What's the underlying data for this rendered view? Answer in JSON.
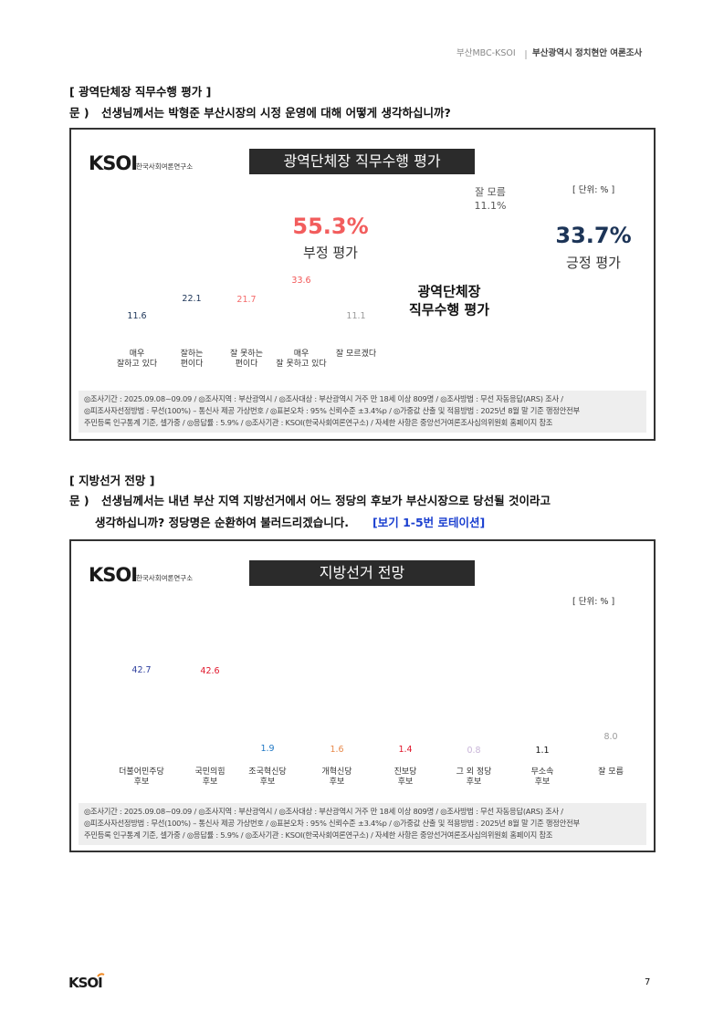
{
  "header": {
    "source": "부산MBC-KSOI",
    "title": "부산광역시 정치현안 여론조사"
  },
  "sections": [
    {
      "heading": "[ 광역단체장 직무수행 평가 ]",
      "question_label": "문 )",
      "question": [
        "선생님께서는 박형준 부산시장의 시정 운영에 대해 어떻게 생각하십니까?"
      ]
    },
    {
      "heading": "[ 지방선거 전망 ]",
      "question_label": "문 )",
      "question": [
        "선생님께서는 내년 부산 지역 지방선거에서 어느 정당의 후보가 부산시장으로 당선될 것이라고",
        "생각하십니까? 정당명은 순환하여 불러드리겠습니다."
      ],
      "question_note": "[보기 1-5번 로테이션]"
    }
  ],
  "panels": [
    {
      "logo": "KSOI",
      "logo_sub": "한국사회여론연구소",
      "title": "광역단체장 직무수행 평가",
      "unit": "[ 단위: % ]",
      "notes": [
        "◎조사기간 : 2025.09.08~09.09 / ◎조사지역 : 부산광역시 / ◎조사대상 : 부산광역시 거주 만 18세 이상 809명 / ◎조사방법 : 무선 자동응답(ARS) 조사 /",
        "◎피조사자선정방법 : 무선(100%) – 통신사 제공 가상번호 / ◎표본오차 : 95% 신뢰수준 ±3.4%p / ◎가중값 산출 및 적용방법 : 2025년 8월 말 기준 행정안전부",
        "주민등록 인구통계 기준, 셀가중 / ◎응답률 : 5.9% / ◎조사기관 : KSOI(한국사회여론연구소) / 자세한 사항은 중앙선거여론조사심의위원회 홈페이지 참조"
      ]
    },
    {
      "logo": "KSOI",
      "logo_sub": "한국사회여론연구소",
      "title": "지방선거 전망",
      "unit": "[ 단위: % ]",
      "notes": [
        "◎조사기간 : 2025.09.08~09.09 / ◎조사지역 : 부산광역시 / ◎조사대상 : 부산광역시 거주 만 18세 이상 809명 / ◎조사방법 : 무선 자동응답(ARS) 조사 /",
        "◎피조사자선정방법 : 무선(100%) – 통신사 제공 가상번호 / ◎표본오차 : 95% 신뢰수준 ±3.4%p / ◎가중값 산출 및 적용방법 : 2025년 8월 말 기준 행정안전부",
        "주민등록 인구통계 기준, 셀가중 / ◎응답률 : 5.9% / ◎조사기관 : KSOI(한국사회여론연구소) / 자세한 사항은 중앙선거여론조사심의위원회 홈페이지 참조"
      ]
    }
  ],
  "chart_data": [
    {
      "type": "bar",
      "categories": [
        "매우\n잘하고 있다",
        "잘하는\n편이다",
        "잘 못하는\n편이다",
        "매우\n잘 못하고 있다",
        "잘 모르겠다"
      ],
      "values": [
        11.6,
        22.1,
        21.7,
        33.6,
        11.1
      ],
      "colors": [
        "#1c3457",
        "#1c3457",
        "#f46a6a",
        "#f25555",
        "#9a9a9a"
      ],
      "hatched": [
        false,
        false,
        false,
        false,
        true
      ]
    },
    {
      "type": "pie",
      "donut": true,
      "center_label": "광역단체장\n직무수행 평가",
      "categories": [
        "긍정 평가",
        "부정 평가",
        "잘 모름"
      ],
      "values": [
        33.7,
        55.3,
        11.1
      ],
      "value_labels": [
        "33.7%",
        "55.3%",
        "11.1%"
      ],
      "colors": [
        "#1c3457",
        "#f25d5d",
        "#c4c4c4"
      ]
    },
    {
      "type": "bar",
      "categories": [
        "더불어민주당\n후보",
        "국민의힘\n후보",
        "조국혁신당\n후보",
        "개혁신당\n후보",
        "진보당\n후보",
        "그 외 정당\n후보",
        "무소속\n후보",
        "잘 모름"
      ],
      "values": [
        42.7,
        42.6,
        1.9,
        1.6,
        1.4,
        0.8,
        1.1,
        8.0
      ],
      "value_labels": [
        "42.7",
        "42.6",
        "1.9",
        "1.6",
        "1.4",
        "0.8",
        "1.1",
        "8.0"
      ],
      "colors": [
        "#2e3f9e",
        "#e0162b",
        "#1f77c4",
        "#e8894a",
        "#e0162b",
        "#c8b4d8",
        "#111111",
        "#9a9a9a"
      ],
      "hatched": [
        false,
        false,
        false,
        false,
        false,
        false,
        false,
        true
      ]
    }
  ],
  "footer": {
    "logo": "KSOI",
    "page": 7
  }
}
